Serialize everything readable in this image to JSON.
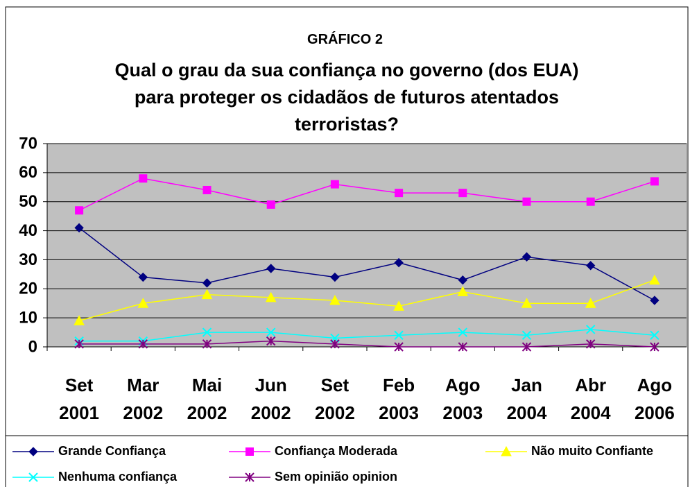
{
  "chart_data": {
    "type": "line",
    "subtitle": "GRÁFICO 2",
    "title": "Qual o grau da sua confiança no governo (dos EUA) para proteger os cidadãos de futuros atentados terroristas?",
    "categories": [
      "Set 2001",
      "Mar 2002",
      "Mai 2002",
      "Jun 2002",
      "Set 2002",
      "Feb 2003",
      "Ago 2003",
      "Jan 2004",
      "Abr 2004",
      "Ago 2006"
    ],
    "series": [
      {
        "name": "Grande Confiança",
        "color": "#000080",
        "marker": "diamond",
        "values": [
          41,
          24,
          22,
          27,
          24,
          29,
          23,
          31,
          28,
          16
        ]
      },
      {
        "name": "Confiança Moderada",
        "color": "#FF00FF",
        "marker": "square",
        "values": [
          47,
          58,
          54,
          49,
          56,
          53,
          53,
          50,
          50,
          57
        ]
      },
      {
        "name": "Não muito Confiante",
        "color": "#FFFF00",
        "marker": "triangle",
        "values": [
          9,
          15,
          18,
          17,
          16,
          14,
          19,
          15,
          15,
          23
        ]
      },
      {
        "name": "Nenhuma confiança",
        "color": "#00FFFF",
        "marker": "x",
        "values": [
          2,
          2,
          5,
          5,
          3,
          4,
          5,
          4,
          6,
          4
        ]
      },
      {
        "name": "Sem opinião opinion",
        "color": "#800080",
        "marker": "asterisk",
        "values": [
          1,
          1,
          1,
          2,
          1,
          0,
          0,
          0,
          1,
          0
        ]
      }
    ],
    "ylim": [
      0,
      70
    ],
    "yticks": [
      0,
      10,
      20,
      30,
      40,
      50,
      60,
      70
    ],
    "grid": true,
    "legend": "bottom"
  }
}
